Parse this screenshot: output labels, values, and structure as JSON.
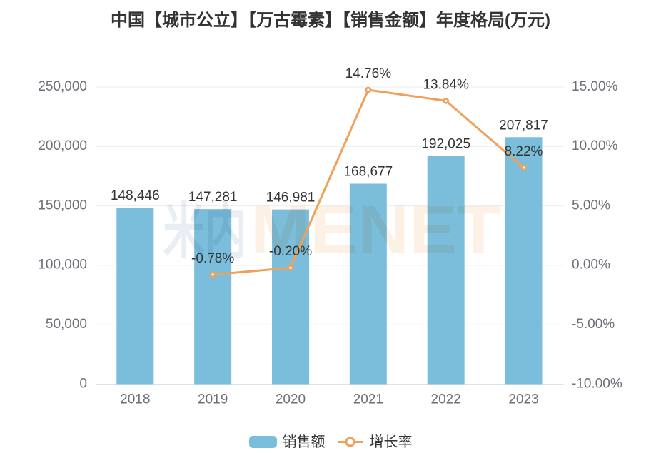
{
  "title": "中国【城市公立】【万古霉素】【销售金额】年度格局(万元)",
  "watermark": {
    "cjk": "米内",
    "latin": "MENET"
  },
  "legend": {
    "items": [
      {
        "label": "销售额",
        "type": "bar"
      },
      {
        "label": "增长率",
        "type": "line"
      }
    ]
  },
  "colors": {
    "bar": "#7BBEDC",
    "line": "#EFA15B",
    "title_text": "#333333",
    "label_text": "#333333",
    "axis_text": "#6E7079",
    "grid_line": "#E9EBEF",
    "axis_line": "#DFE2E7",
    "watermark_cjk": "#E9EEF4",
    "watermark_latin": "#FDF0E5",
    "background": "#FFFFFF"
  },
  "chart_data": {
    "type": "bar+line",
    "categories": [
      "2018",
      "2019",
      "2020",
      "2021",
      "2022",
      "2023"
    ],
    "series": [
      {
        "name": "销售额",
        "type": "bar",
        "values": [
          148446,
          147281,
          146981,
          168677,
          192025,
          207817
        ],
        "labels": [
          "148,446",
          "147,281",
          "146,981",
          "168,677",
          "192,025",
          "207,817"
        ],
        "axis": "left"
      },
      {
        "name": "增长率",
        "type": "line",
        "values": [
          null,
          -0.78,
          -0.2,
          14.76,
          13.84,
          8.22
        ],
        "labels": [
          null,
          "-0.78%",
          "-0.20%",
          "14.76%",
          "13.84%",
          "8.22%"
        ],
        "axis": "right"
      }
    ],
    "title": "中国【城市公立】【万古霉素】【销售金额】年度格局(万元)",
    "xlabel": "",
    "ylabel_left": "",
    "ylabel_right": "",
    "left_axis": {
      "min": 0,
      "max": 250000,
      "ticks": [
        "0",
        "50,000",
        "100,000",
        "150,000",
        "200,000",
        "250,000"
      ]
    },
    "right_axis": {
      "min": -10,
      "max": 15,
      "ticks": [
        "-10.00%",
        "-5.00%",
        "0.00%",
        "5.00%",
        "10.00%",
        "15.00%"
      ]
    },
    "grid": true,
    "legend_position": "bottom"
  }
}
